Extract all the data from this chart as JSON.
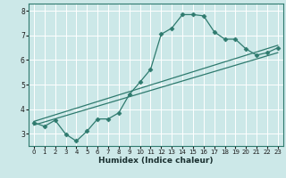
{
  "title": "",
  "xlabel": "Humidex (Indice chaleur)",
  "ylabel": "",
  "background_color": "#cce8e8",
  "grid_color": "#ffffff",
  "line_color": "#2e7a6e",
  "spine_color": "#2e7a6e",
  "xlim": [
    -0.5,
    23.5
  ],
  "ylim": [
    2.5,
    8.3
  ],
  "xticks": [
    0,
    1,
    2,
    3,
    4,
    5,
    6,
    7,
    8,
    9,
    10,
    11,
    12,
    13,
    14,
    15,
    16,
    17,
    18,
    19,
    20,
    21,
    22,
    23
  ],
  "yticks": [
    3,
    4,
    5,
    6,
    7,
    8
  ],
  "series1_x": [
    0,
    1,
    2,
    3,
    4,
    5,
    6,
    7,
    8,
    9,
    10,
    11,
    12,
    13,
    14,
    15,
    16,
    17,
    18,
    19,
    20,
    21,
    22,
    23
  ],
  "series1_y": [
    3.45,
    3.3,
    3.55,
    2.98,
    2.7,
    3.1,
    3.6,
    3.6,
    3.85,
    4.6,
    5.1,
    5.62,
    7.05,
    7.3,
    7.85,
    7.85,
    7.8,
    7.15,
    6.85,
    6.85,
    6.45,
    6.2,
    6.3,
    6.5
  ],
  "trend1_x": [
    0,
    23
  ],
  "trend1_y": [
    3.35,
    6.3
  ],
  "trend2_x": [
    0,
    23
  ],
  "trend2_y": [
    3.5,
    6.6
  ],
  "marker": "D",
  "markersize": 2.5,
  "linewidth": 0.9,
  "tick_fontsize": 5.0,
  "xlabel_fontsize": 6.5
}
